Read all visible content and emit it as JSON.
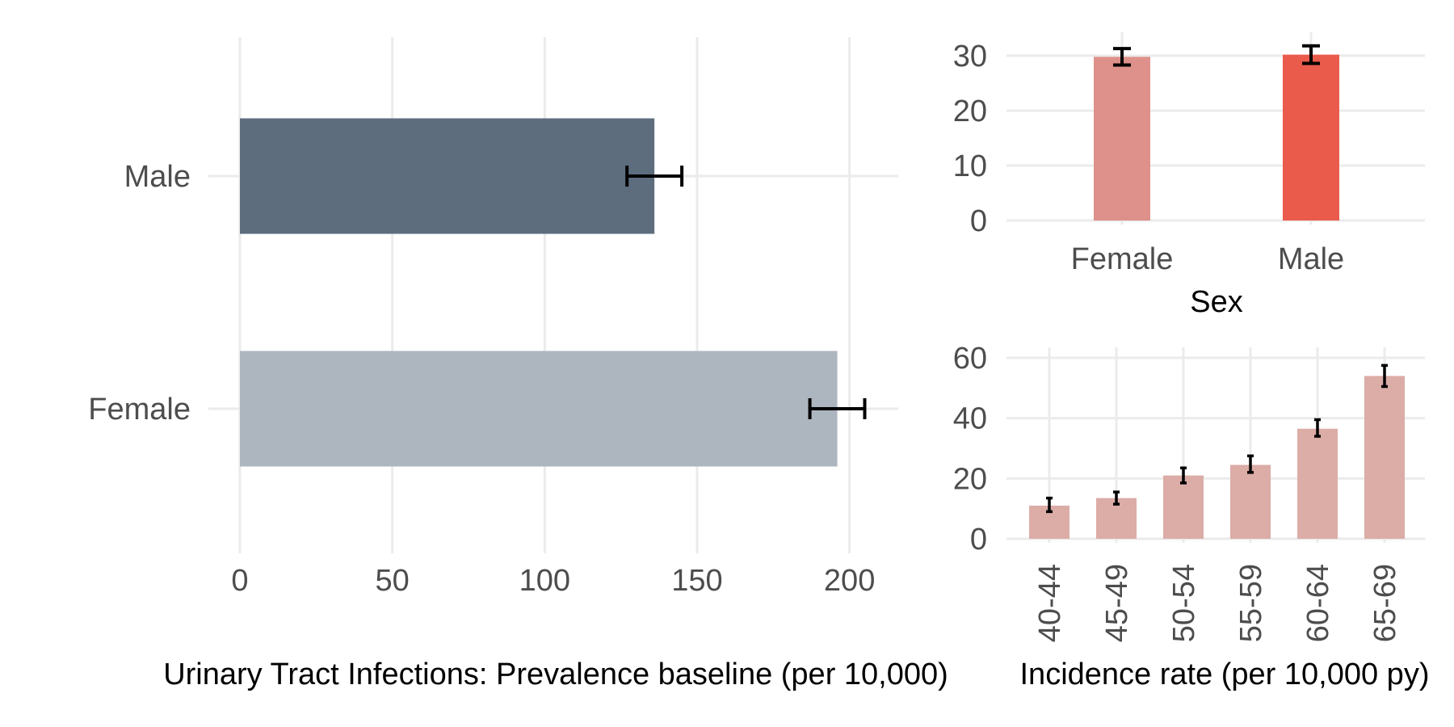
{
  "chart_data": [
    {
      "type": "bar",
      "orientation": "horizontal",
      "categories": [
        "Male",
        "Female"
      ],
      "values": [
        136,
        196
      ],
      "errors": [
        [
          127,
          145
        ],
        [
          187,
          205
        ]
      ],
      "colors": [
        "#5d6d7e",
        "#adb5bf"
      ],
      "xlim": [
        0,
        216
      ],
      "xticks": [
        "0",
        "50",
        "100",
        "150",
        "200"
      ],
      "xlabel": "Urinary Tract Infections: Prevalence baseline (per 10,000)",
      "grid": true
    },
    {
      "type": "bar",
      "categories": [
        "Female",
        "Male"
      ],
      "values": [
        29.8,
        30.2
      ],
      "errors": [
        [
          28.3,
          31.3
        ],
        [
          28.6,
          31.8
        ]
      ],
      "colors": [
        "#de918a",
        "#eb5b4c"
      ],
      "ylim": [
        0,
        31.8
      ],
      "yticks": [
        "0",
        "10",
        "20",
        "30"
      ],
      "xlabel": "Sex",
      "grid": true
    },
    {
      "type": "bar",
      "categories": [
        "40-44",
        "45-49",
        "50-54",
        "55-59",
        "60-64",
        "65-69"
      ],
      "values": [
        11,
        13.5,
        21,
        24.5,
        36.5,
        54
      ],
      "errors": [
        [
          9,
          13.5
        ],
        [
          11.5,
          15.5
        ],
        [
          18.5,
          23.5
        ],
        [
          22,
          27.5
        ],
        [
          34,
          39.5
        ],
        [
          50.5,
          57.5
        ]
      ],
      "color": "#dcaca7",
      "ylim": [
        0,
        61
      ],
      "yticks": [
        "0",
        "20",
        "40",
        "60"
      ],
      "xlabel": "Incidence rate (per 10,000 py)",
      "grid": true
    }
  ]
}
